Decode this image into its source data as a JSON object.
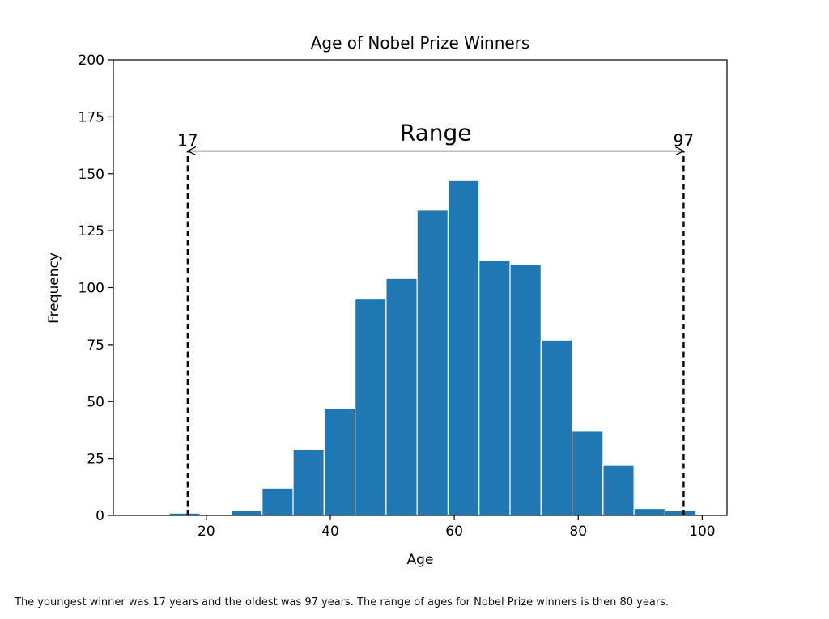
{
  "chart_data": {
    "type": "bar",
    "title": "Age of Nobel Prize Winners",
    "xlabel": "Age",
    "ylabel": "Frequency",
    "xlim": [
      5,
      104
    ],
    "ylim": [
      0,
      200
    ],
    "xticks": [
      20,
      40,
      60,
      80,
      100
    ],
    "yticks": [
      0,
      25,
      50,
      75,
      100,
      125,
      150,
      175,
      200
    ],
    "bins": [
      {
        "start": 14.0,
        "end": 19.0,
        "value": 1
      },
      {
        "start": 19.0,
        "end": 24.0,
        "value": 0
      },
      {
        "start": 24.0,
        "end": 29.0,
        "value": 2
      },
      {
        "start": 29.0,
        "end": 34.0,
        "value": 12
      },
      {
        "start": 34.0,
        "end": 39.0,
        "value": 29
      },
      {
        "start": 39.0,
        "end": 44.0,
        "value": 47
      },
      {
        "start": 44.0,
        "end": 49.0,
        "value": 95
      },
      {
        "start": 49.0,
        "end": 54.0,
        "value": 104
      },
      {
        "start": 54.0,
        "end": 59.0,
        "value": 134
      },
      {
        "start": 59.0,
        "end": 64.0,
        "value": 147
      },
      {
        "start": 64.0,
        "end": 69.0,
        "value": 112
      },
      {
        "start": 69.0,
        "end": 74.0,
        "value": 110
      },
      {
        "start": 74.0,
        "end": 79.0,
        "value": 77
      },
      {
        "start": 79.0,
        "end": 84.0,
        "value": 37
      },
      {
        "start": 84.0,
        "end": 89.0,
        "value": 22
      },
      {
        "start": 89.0,
        "end": 94.0,
        "value": 3
      },
      {
        "start": 94.0,
        "end": 99.0,
        "value": 2
      }
    ],
    "bar_color": "#1f77b4",
    "annotations": {
      "min_value": 17,
      "max_value": 97,
      "min_label": "17",
      "max_label": "97",
      "range_label": "Range",
      "arrow_y": 160,
      "line_style": "dashed"
    },
    "grid": false
  },
  "caption": "The youngest winner was 17 years and the oldest was 97 years. The range of ages for Nobel Prize winners is then 80 years."
}
